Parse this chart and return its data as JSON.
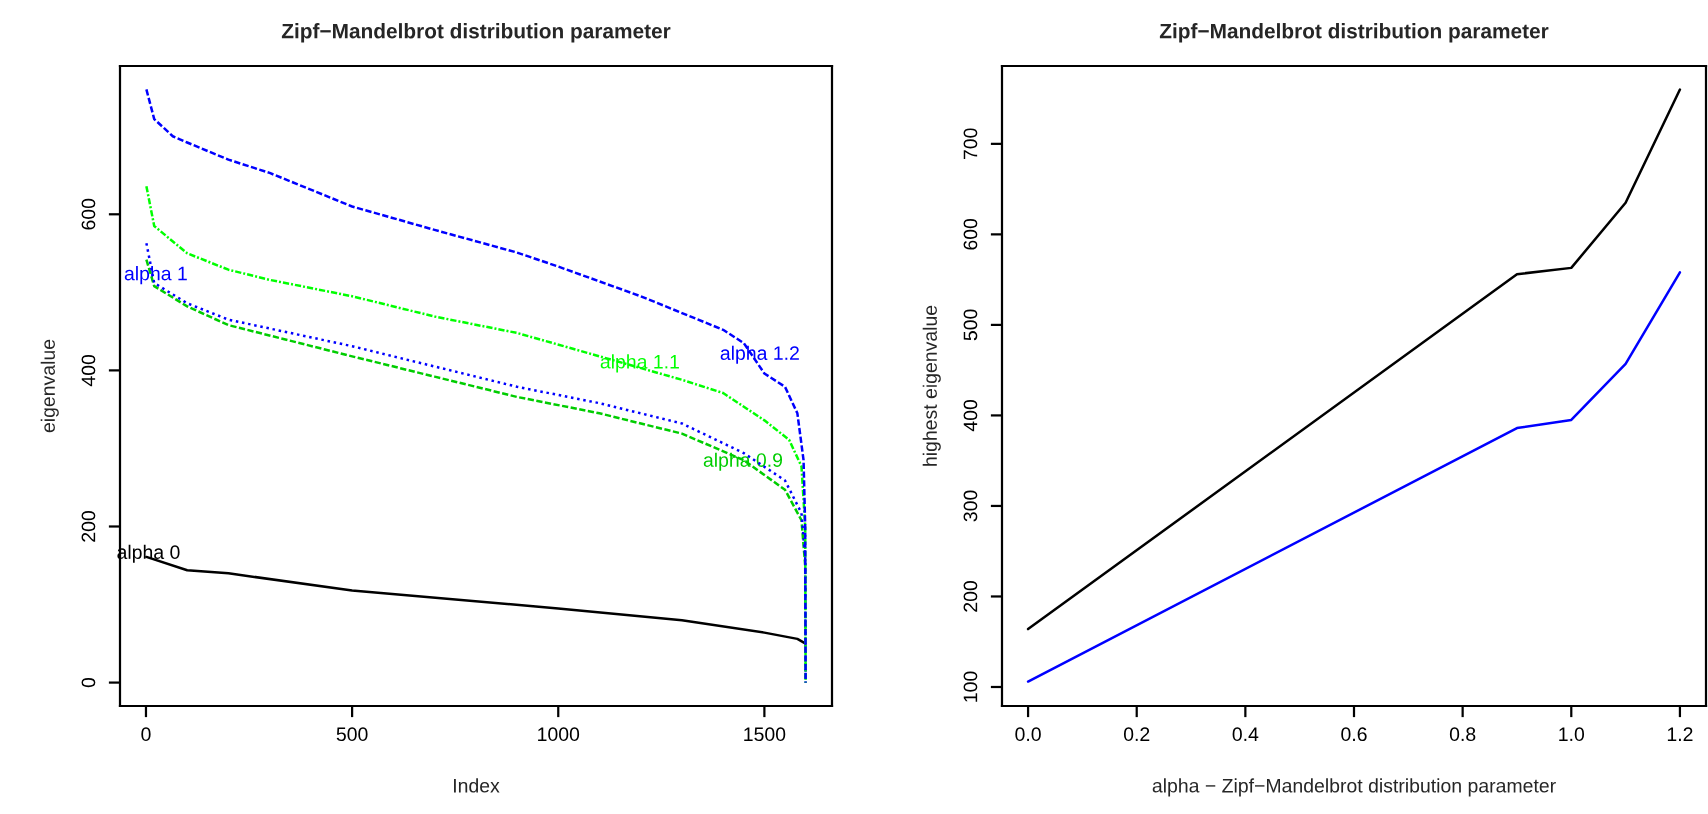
{
  "chart_data": [
    {
      "type": "line",
      "title": "Zipf−Mandelbrot distribution parameter",
      "xlabel": "Index",
      "ylabel": "eigenvalue",
      "xlim": [
        -63,
        1664
      ],
      "ylim": [
        -30,
        790
      ],
      "xticks": [
        0,
        500,
        1000,
        1500
      ],
      "yticks": [
        0,
        200,
        400,
        600
      ],
      "grid": false,
      "legend": false,
      "marker": "none",
      "series": [
        {
          "color": "#000000",
          "line_style": "solid",
          "x": [
            1,
            100,
            200,
            500,
            1000,
            1300,
            1500,
            1580,
            1600
          ],
          "values": [
            161,
            144,
            140,
            118,
            95,
            80,
            64,
            56,
            50
          ]
        },
        {
          "color": "#00cd00",
          "line_style": "dashed",
          "x": [
            1,
            20,
            100,
            200,
            500,
            700,
            900,
            1100,
            1300,
            1450,
            1550,
            1590,
            1599,
            1600
          ],
          "values": [
            542,
            508,
            482,
            458,
            418,
            392,
            366,
            345,
            319,
            285,
            247,
            208,
            150,
            0
          ]
        },
        {
          "color": "#0000ff",
          "line_style": "dotted",
          "x": [
            1,
            20,
            100,
            200,
            500,
            700,
            900,
            1100,
            1300,
            1450,
            1550,
            1590,
            1599,
            1600
          ],
          "values": [
            563,
            512,
            486,
            465,
            431,
            405,
            379,
            358,
            332,
            294,
            259,
            217,
            160,
            0
          ]
        },
        {
          "color": "#00ff00",
          "line_style": "dashdot",
          "x": [
            1,
            20,
            100,
            200,
            300,
            500,
            700,
            900,
            1100,
            1300,
            1400,
            1500,
            1560,
            1590,
            1599,
            1600
          ],
          "values": [
            636,
            585,
            550,
            529,
            516,
            495,
            469,
            448,
            418,
            388,
            371,
            336,
            311,
            277,
            200,
            0
          ]
        },
        {
          "color": "#0000ff",
          "line_style": "dashed",
          "x": [
            1,
            20,
            65,
            100,
            200,
            300,
            500,
            700,
            900,
            1000,
            1200,
            1400,
            1450,
            1500,
            1550,
            1580,
            1595,
            1599,
            1600
          ],
          "values": [
            760,
            722,
            700,
            692,
            670,
            653,
            610,
            580,
            551,
            533,
            495,
            452,
            435,
            396,
            379,
            345,
            285,
            200,
            0
          ]
        }
      ],
      "annotations": [
        {
          "text": "alpha 0",
          "x": 6,
          "y": 165
        },
        {
          "text": "alpha 1",
          "x": 24,
          "y": 522
        },
        {
          "text": "alpha 1.1",
          "x": 1198,
          "y": 409
        },
        {
          "text": "alpha 1.2",
          "x": 1489,
          "y": 420
        },
        {
          "text": "alpha 0.9",
          "x": 1448,
          "y": 283
        }
      ]
    },
    {
      "type": "line",
      "title": "Zipf−Mandelbrot distribution parameter",
      "xlabel": "alpha − Zipf−Mandelbrot distribution parameter",
      "ylabel": "highest eigenvalue",
      "xlim": [
        -0.048,
        1.248
      ],
      "ylim": [
        79,
        786
      ],
      "xticks": [
        {
          "value": 0,
          "label": "0.0"
        },
        {
          "value": 0.2,
          "label": "0.2"
        },
        {
          "value": 0.4,
          "label": "0.4"
        },
        {
          "value": 0.6,
          "label": "0.6"
        },
        {
          "value": 0.8,
          "label": "0.8"
        },
        {
          "value": 1.0,
          "label": "1.0"
        },
        {
          "value": 1.2,
          "label": "1.2"
        }
      ],
      "yticks": [
        100,
        200,
        300,
        400,
        500,
        600,
        700
      ],
      "grid": false,
      "legend": false,
      "marker": "none",
      "series": [
        {
          "color": "#000000",
          "line_style": "solid",
          "x": [
            0,
            0.9,
            1.0,
            1.1,
            1.2
          ],
          "values": [
            164,
            556,
            563,
            635,
            760
          ]
        },
        {
          "color": "#0000ff",
          "line_style": "solid",
          "x": [
            0,
            0.9,
            1.0,
            1.1,
            1.2
          ],
          "values": [
            106,
            386,
            395,
            457,
            558
          ]
        }
      ]
    }
  ]
}
